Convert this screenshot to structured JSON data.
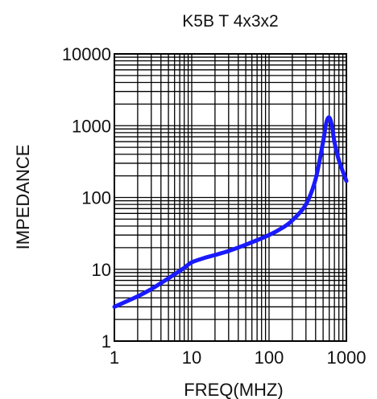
{
  "chart_data": {
    "type": "line",
    "title": "K5B T 4x3x2",
    "xlabel": "FREQ(MHZ)",
    "ylabel": "IMPEDANCE",
    "x_scale": "log",
    "y_scale": "log",
    "xlim": [
      1,
      1000
    ],
    "ylim": [
      1,
      10000
    ],
    "x_ticks": [
      1,
      10,
      100,
      1000
    ],
    "x_tick_labels": [
      "1",
      "10",
      "100",
      "1000"
    ],
    "y_ticks": [
      1,
      10,
      100,
      1000,
      10000
    ],
    "y_tick_labels": [
      "1",
      "10",
      "100",
      "1000",
      "10000"
    ],
    "grid": true,
    "line_color": "#1a1aff",
    "series": [
      {
        "x": [
          1,
          2,
          3,
          5,
          8,
          10,
          15,
          20,
          30,
          50,
          100,
          150,
          200,
          300,
          400,
          500,
          550,
          600,
          650,
          700,
          800,
          1000
        ],
        "y": [
          3,
          4.2,
          5.3,
          7.5,
          10.5,
          12.5,
          14.5,
          15.8,
          18,
          22,
          30,
          38,
          48,
          80,
          180,
          600,
          1100,
          1300,
          1000,
          600,
          330,
          170
        ]
      }
    ]
  }
}
